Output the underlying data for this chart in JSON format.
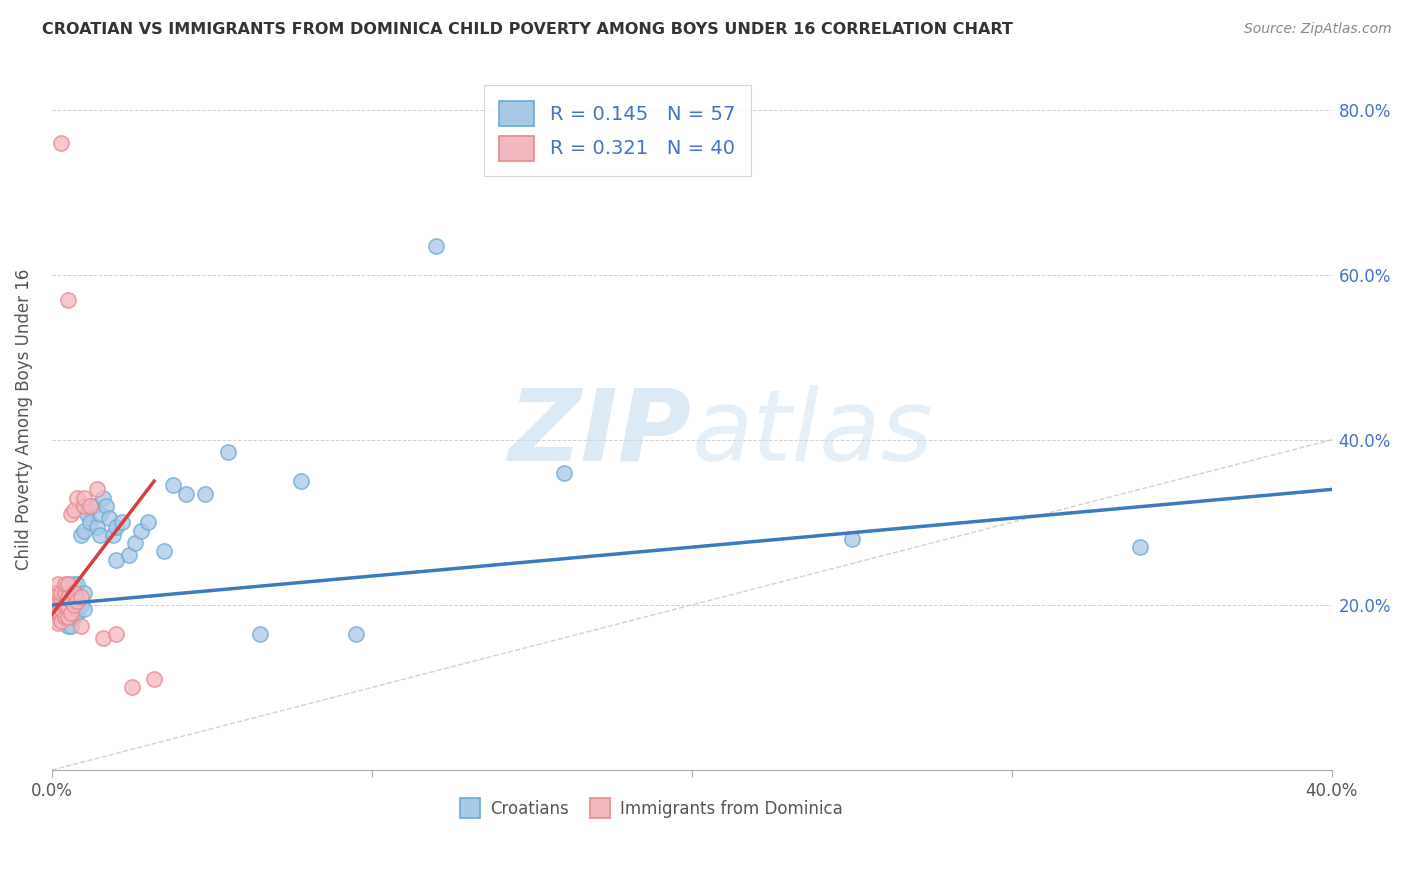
{
  "title": "CROATIAN VS IMMIGRANTS FROM DOMINICA CHILD POVERTY AMONG BOYS UNDER 16 CORRELATION CHART",
  "source": "Source: ZipAtlas.com",
  "ylabel": "Child Poverty Among Boys Under 16",
  "xlim": [
    0.0,
    0.4
  ],
  "ylim": [
    0.0,
    0.85
  ],
  "xticks": [
    0.0,
    0.1,
    0.2,
    0.3,
    0.4
  ],
  "xtick_labels_show": [
    "0.0%",
    "",
    "",
    "",
    "40.0%"
  ],
  "yticks": [
    0.0,
    0.2,
    0.4,
    0.6,
    0.8
  ],
  "ytick_right_labels": [
    "",
    "20.0%",
    "40.0%",
    "60.0%",
    "80.0%"
  ],
  "blue_R": 0.145,
  "blue_N": 57,
  "pink_R": 0.321,
  "pink_N": 40,
  "blue_color": "#a8c8e8",
  "pink_color": "#f4b8c0",
  "blue_edge_color": "#6aaad4",
  "pink_edge_color": "#e8888c",
  "blue_line_color": "#3a7abf",
  "pink_line_color": "#d44040",
  "watermark_zip": "ZIP",
  "watermark_atlas": "atlas",
  "legend_entries": [
    "Croatians",
    "Immigrants from Dominica"
  ],
  "blue_points_x": [
    0.003,
    0.003,
    0.004,
    0.004,
    0.004,
    0.004,
    0.005,
    0.005,
    0.005,
    0.005,
    0.005,
    0.005,
    0.006,
    0.006,
    0.006,
    0.006,
    0.007,
    0.007,
    0.007,
    0.007,
    0.008,
    0.008,
    0.008,
    0.009,
    0.009,
    0.01,
    0.01,
    0.01,
    0.011,
    0.012,
    0.013,
    0.014,
    0.015,
    0.015,
    0.016,
    0.017,
    0.018,
    0.019,
    0.02,
    0.02,
    0.022,
    0.024,
    0.026,
    0.028,
    0.03,
    0.035,
    0.038,
    0.042,
    0.048,
    0.055,
    0.065,
    0.078,
    0.095,
    0.12,
    0.16,
    0.25,
    0.34
  ],
  "blue_points_y": [
    0.195,
    0.205,
    0.185,
    0.2,
    0.21,
    0.22,
    0.175,
    0.188,
    0.195,
    0.205,
    0.215,
    0.225,
    0.175,
    0.192,
    0.205,
    0.215,
    0.185,
    0.2,
    0.215,
    0.225,
    0.19,
    0.21,
    0.225,
    0.2,
    0.285,
    0.195,
    0.215,
    0.29,
    0.31,
    0.3,
    0.32,
    0.295,
    0.31,
    0.285,
    0.33,
    0.32,
    0.305,
    0.285,
    0.295,
    0.255,
    0.3,
    0.26,
    0.275,
    0.29,
    0.3,
    0.265,
    0.345,
    0.335,
    0.335,
    0.385,
    0.165,
    0.35,
    0.165,
    0.635,
    0.36,
    0.28,
    0.27
  ],
  "pink_points_x": [
    0.001,
    0.001,
    0.001,
    0.002,
    0.002,
    0.002,
    0.002,
    0.002,
    0.003,
    0.003,
    0.003,
    0.003,
    0.003,
    0.004,
    0.004,
    0.004,
    0.004,
    0.005,
    0.005,
    0.005,
    0.005,
    0.005,
    0.006,
    0.006,
    0.006,
    0.007,
    0.007,
    0.007,
    0.008,
    0.008,
    0.009,
    0.009,
    0.01,
    0.01,
    0.012,
    0.014,
    0.016,
    0.02,
    0.025,
    0.032
  ],
  "pink_points_y": [
    0.185,
    0.2,
    0.215,
    0.178,
    0.192,
    0.205,
    0.215,
    0.225,
    0.18,
    0.195,
    0.205,
    0.215,
    0.76,
    0.185,
    0.2,
    0.215,
    0.225,
    0.185,
    0.198,
    0.21,
    0.225,
    0.57,
    0.19,
    0.205,
    0.31,
    0.2,
    0.215,
    0.315,
    0.205,
    0.33,
    0.175,
    0.21,
    0.32,
    0.33,
    0.32,
    0.34,
    0.16,
    0.165,
    0.1,
    0.11
  ],
  "blue_trend_x": [
    0.0,
    0.4
  ],
  "blue_trend_y": [
    0.2,
    0.34
  ],
  "pink_trend_x": [
    0.0,
    0.032
  ],
  "pink_trend_y": [
    0.188,
    0.35
  ]
}
